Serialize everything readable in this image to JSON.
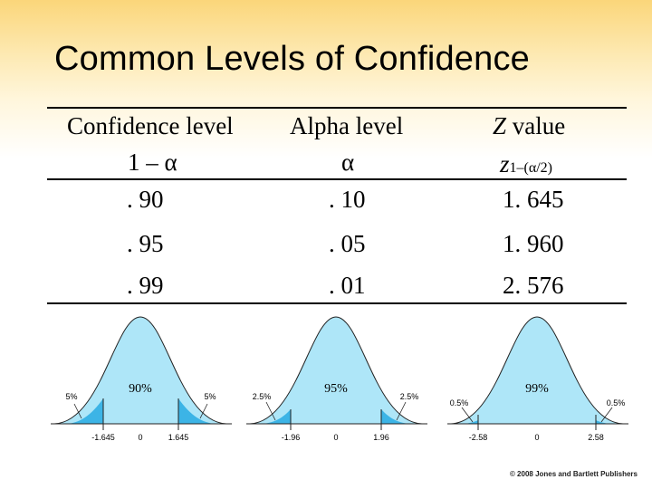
{
  "title": "Common Levels of Confidence",
  "table": {
    "headers": {
      "confidence_level": "Confidence level",
      "confidence_formula": "1 – α",
      "alpha_level": "Alpha level",
      "alpha_symbol": "α",
      "z_value": "Z value",
      "z_symbol": "z",
      "z_subscript": "1–(α/2)"
    },
    "rows": [
      {
        "confidence": ". 90",
        "alpha": ". 10",
        "z": "1. 645"
      },
      {
        "confidence": ". 95",
        "alpha": ". 05",
        "z": "1. 960"
      },
      {
        "confidence": ". 99",
        "alpha": ". 01",
        "z": "2. 576"
      }
    ]
  },
  "curves": [
    {
      "center_label": "90%",
      "tail_left_label": "5%",
      "tail_right_label": "5%",
      "tick_left": "-1.645",
      "tick_zero": "0",
      "tick_right": "1.645",
      "area_fraction": 0.9
    },
    {
      "center_label": "95%",
      "tail_left_label": "2.5%",
      "tail_right_label": "2.5%",
      "tick_left": "-1.96",
      "tick_zero": "0",
      "tick_right": "1.96",
      "area_fraction": 0.95
    },
    {
      "center_label": "99%",
      "tail_left_label": "0.5%",
      "tail_right_label": "0.5%",
      "tick_left": "-2.58",
      "tick_zero": "0",
      "tick_right": "2.58",
      "area_fraction": 0.99
    }
  ],
  "colors": {
    "curve_fill": "#aee6f8",
    "tail_fill": "#3cb4e6",
    "curve_stroke": "#222222"
  },
  "copyright": "© 2008 Jones and Bartlett Publishers"
}
